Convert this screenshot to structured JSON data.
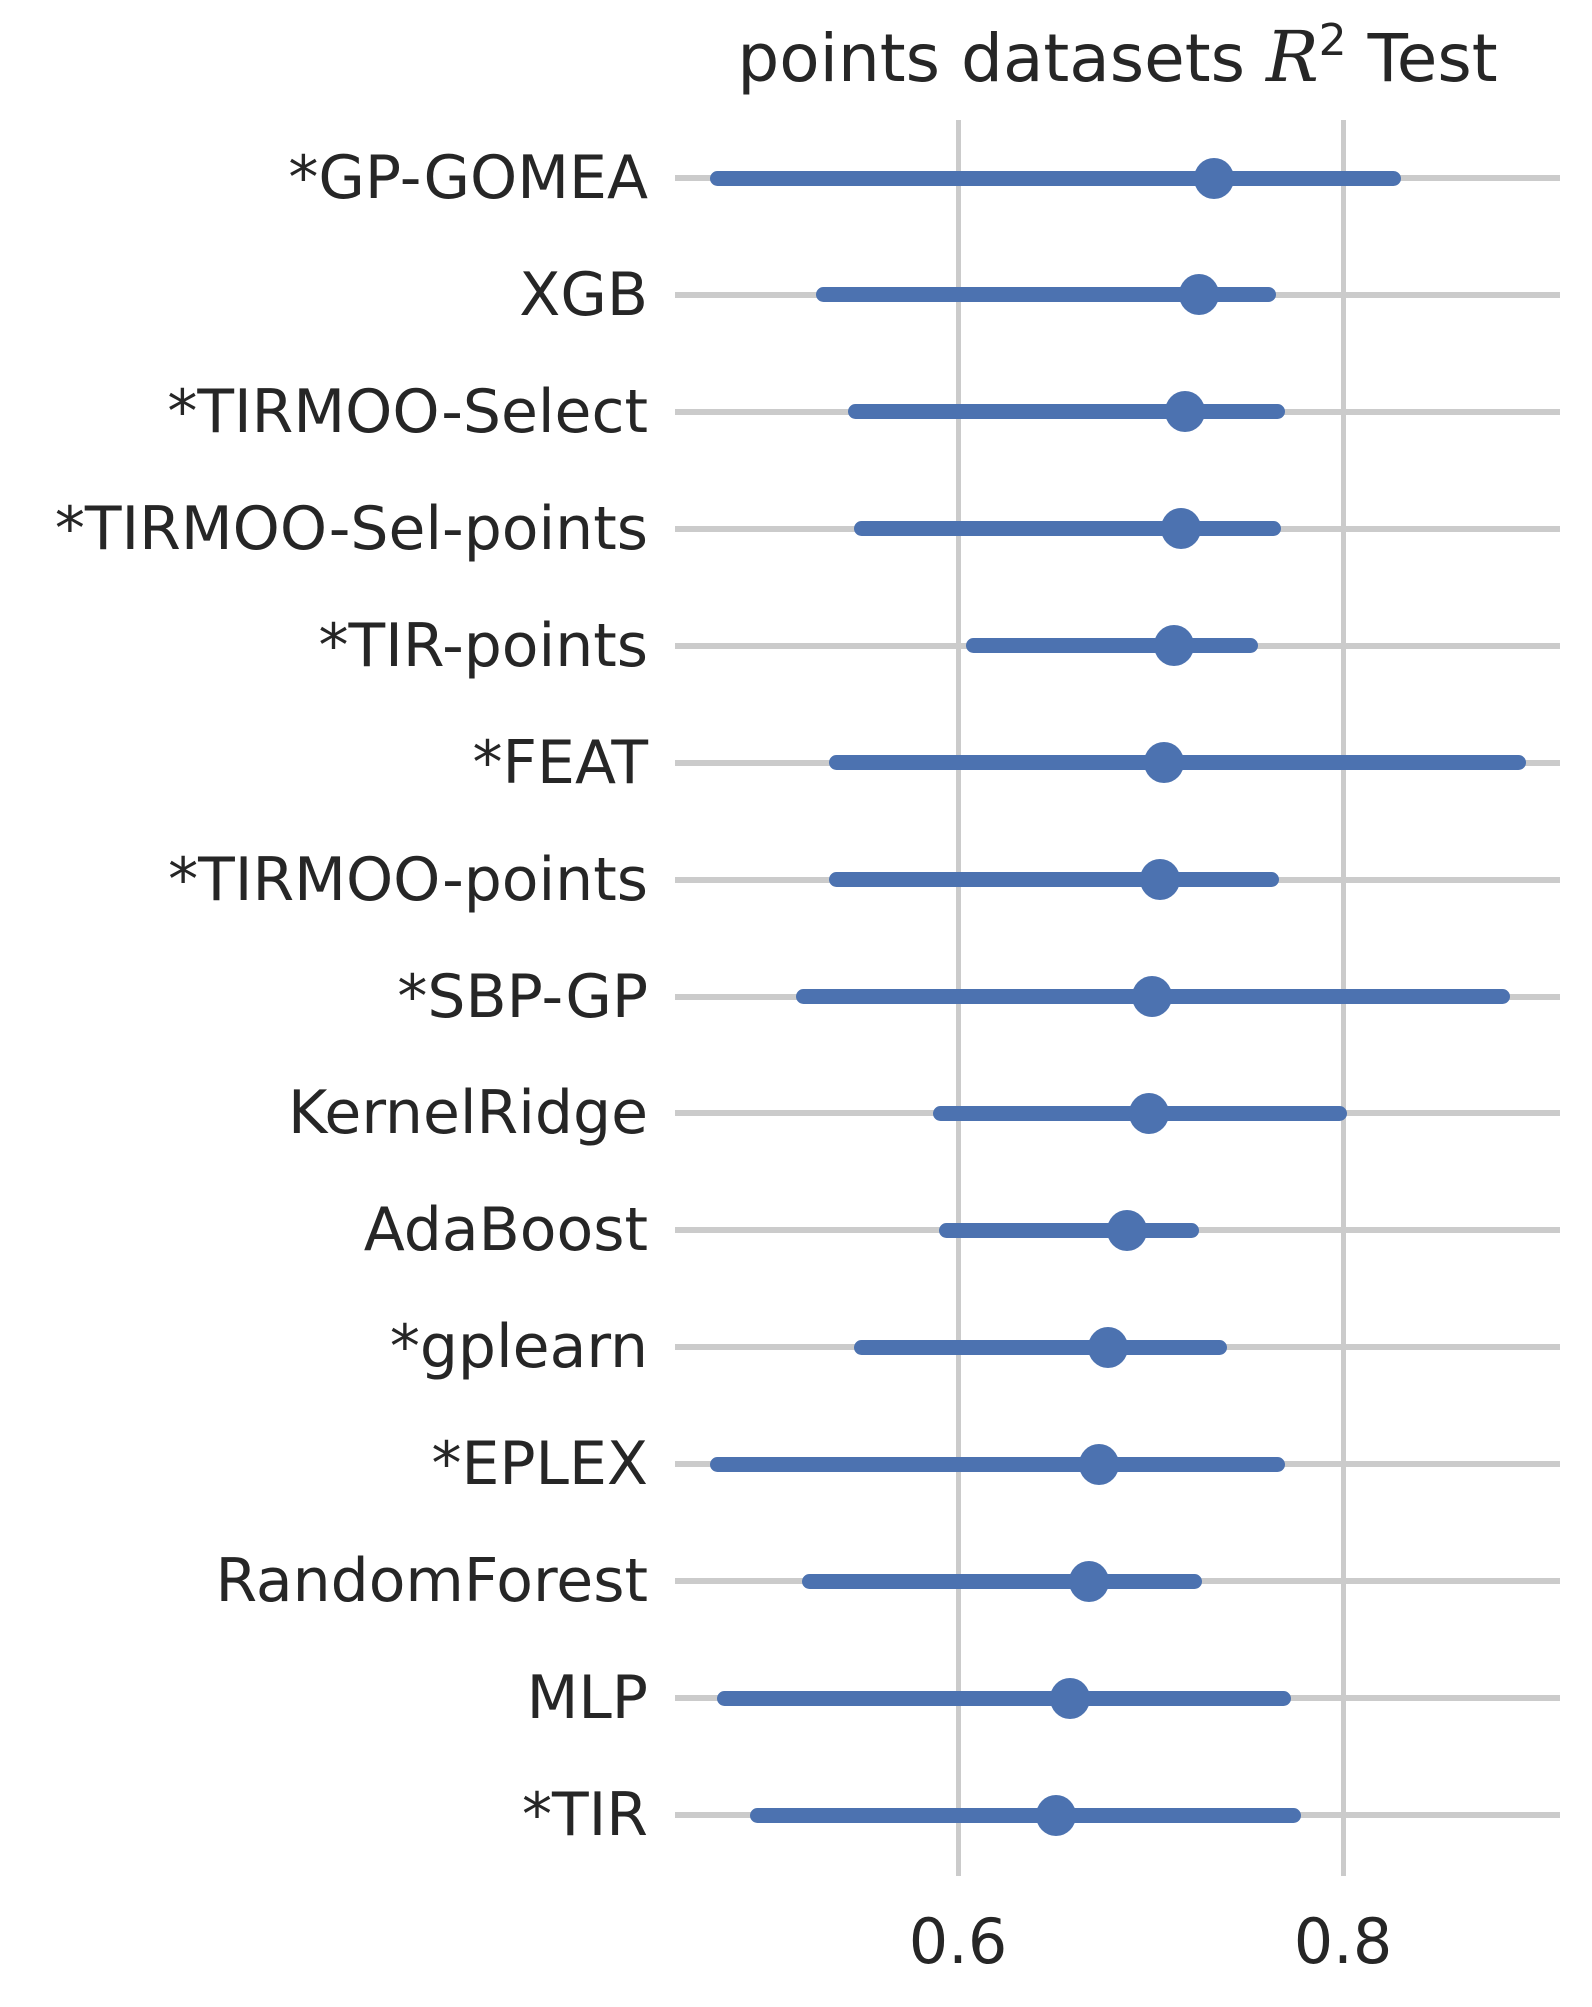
{
  "title": {
    "prefix": "points datasets ",
    "math_var": "R",
    "superscript": "2",
    "suffix": " Test"
  },
  "chart_data": {
    "type": "scatter",
    "subtype": "horizontal-pointplot-with-ci",
    "title": "points datasets R^2 Test",
    "xlabel": "",
    "ylabel": "",
    "legend": false,
    "grid": true,
    "x_ticks": [
      0.6,
      0.8
    ],
    "x_tick_labels": [
      "0.6",
      "0.8"
    ],
    "xlim": [
      0.453,
      0.913
    ],
    "point_color": "#4C72B0",
    "gridline_color": "#cbcbcb",
    "text_color": "#262626",
    "categories": [
      "*GP-GOMEA",
      "XGB",
      "*TIRMOO-Select",
      "*TIRMOO-Sel-points",
      "*TIR-points",
      "*FEAT",
      "*TIRMOO-points",
      "*SBP-GP",
      "KernelRidge",
      "AdaBoost",
      "*gplearn",
      "*EPLEX",
      "RandomForest",
      "MLP",
      "*TIR"
    ],
    "values": [
      0.733,
      0.725,
      0.718,
      0.716,
      0.712,
      0.707,
      0.705,
      0.701,
      0.699,
      0.688,
      0.678,
      0.673,
      0.668,
      0.658,
      0.651
    ],
    "ci_low": [
      0.471,
      0.526,
      0.543,
      0.546,
      0.604,
      0.533,
      0.533,
      0.516,
      0.587,
      0.59,
      0.546,
      0.471,
      0.519,
      0.475,
      0.492
    ],
    "ci_high": [
      0.83,
      0.765,
      0.77,
      0.768,
      0.756,
      0.895,
      0.767,
      0.887,
      0.802,
      0.725,
      0.74,
      0.77,
      0.727,
      0.773,
      0.778
    ]
  }
}
